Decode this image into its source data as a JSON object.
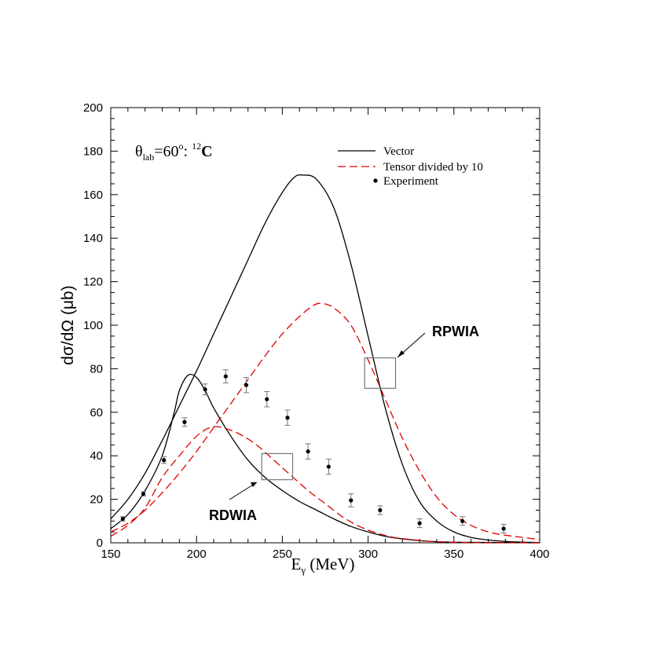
{
  "chart_data": {
    "type": "line",
    "xlabel": "E",
    "xlabel_sub": "γ",
    "xlabel_unit": " (MeV)",
    "ylabel": "dσ/dΩ (μb)",
    "xlim": [
      150,
      400
    ],
    "ylim": [
      0,
      200
    ],
    "xticks": [
      "150",
      "200",
      "250",
      "300",
      "350",
      "400"
    ],
    "yticks": [
      "0",
      "20",
      "40",
      "60",
      "80",
      "100",
      "120",
      "140",
      "160",
      "180",
      "200"
    ],
    "title": {
      "theta": "θ",
      "sub": "lab",
      "eq": "=60",
      "sup": "o",
      "mid": ": ",
      "iso_sup": "12",
      "iso": "C"
    },
    "legend": {
      "vector": "Vector",
      "tensor": "Tensor divided by 10",
      "experiment": "Experiment"
    },
    "annotations": {
      "rpwia": "RPWIA",
      "rdwia": "RDWIA"
    },
    "colors": {
      "vector": "#000000",
      "tensor": "#e00000",
      "experiment": "#000000",
      "box": "#777777"
    },
    "series": [
      {
        "name": "Vector",
        "model": "RPWIA",
        "style": "solid",
        "points": [
          [
            150,
            11
          ],
          [
            160,
            20
          ],
          [
            170,
            32
          ],
          [
            180,
            47
          ],
          [
            190,
            63
          ],
          [
            200,
            79
          ],
          [
            210,
            96
          ],
          [
            220,
            113
          ],
          [
            230,
            130
          ],
          [
            240,
            147
          ],
          [
            250,
            161
          ],
          [
            257,
            168
          ],
          [
            262,
            169
          ],
          [
            270,
            167
          ],
          [
            280,
            154
          ],
          [
            290,
            128
          ],
          [
            300,
            95
          ],
          [
            310,
            62
          ],
          [
            320,
            36
          ],
          [
            330,
            19
          ],
          [
            340,
            10
          ],
          [
            350,
            5
          ],
          [
            360,
            2.5
          ],
          [
            370,
            1.3
          ],
          [
            380,
            0.6
          ],
          [
            390,
            0.3
          ],
          [
            400,
            0.1
          ]
        ]
      },
      {
        "name": "Vector",
        "model": "RDWIA",
        "style": "solid",
        "points": [
          [
            150,
            6.5
          ],
          [
            160,
            13
          ],
          [
            170,
            24
          ],
          [
            180,
            40
          ],
          [
            187,
            60
          ],
          [
            190,
            70
          ],
          [
            195,
            77
          ],
          [
            200,
            76
          ],
          [
            205,
            70
          ],
          [
            210,
            62
          ],
          [
            220,
            49
          ],
          [
            230,
            38
          ],
          [
            240,
            30
          ],
          [
            250,
            24
          ],
          [
            260,
            19
          ],
          [
            270,
            15
          ],
          [
            280,
            11
          ],
          [
            290,
            7.5
          ],
          [
            300,
            5
          ],
          [
            310,
            3
          ],
          [
            320,
            1.8
          ],
          [
            330,
            1
          ],
          [
            340,
            0.5
          ],
          [
            360,
            0.2
          ],
          [
            380,
            0.1
          ],
          [
            400,
            0
          ]
        ]
      },
      {
        "name": "Tensor divided by 10",
        "model": "RPWIA",
        "style": "dashed",
        "points": [
          [
            150,
            5
          ],
          [
            160,
            9
          ],
          [
            170,
            15
          ],
          [
            180,
            23
          ],
          [
            190,
            32
          ],
          [
            200,
            42
          ],
          [
            210,
            53
          ],
          [
            220,
            64
          ],
          [
            230,
            75
          ],
          [
            240,
            86
          ],
          [
            250,
            96
          ],
          [
            260,
            104
          ],
          [
            268,
            109
          ],
          [
            273,
            110
          ],
          [
            280,
            108
          ],
          [
            290,
            100
          ],
          [
            300,
            84
          ],
          [
            310,
            66
          ],
          [
            320,
            48
          ],
          [
            330,
            33
          ],
          [
            340,
            21
          ],
          [
            350,
            13
          ],
          [
            360,
            8
          ],
          [
            370,
            5
          ],
          [
            380,
            3.5
          ],
          [
            390,
            2.5
          ],
          [
            400,
            1.5
          ]
        ]
      },
      {
        "name": "Tensor divided by 10",
        "model": "RDWIA",
        "style": "dashed",
        "points": [
          [
            150,
            3
          ],
          [
            160,
            8
          ],
          [
            170,
            16
          ],
          [
            180,
            30
          ],
          [
            190,
            40
          ],
          [
            200,
            49
          ],
          [
            208,
            53
          ],
          [
            215,
            53
          ],
          [
            225,
            50
          ],
          [
            235,
            45
          ],
          [
            245,
            38
          ],
          [
            255,
            31
          ],
          [
            265,
            24
          ],
          [
            275,
            18
          ],
          [
            285,
            12
          ],
          [
            295,
            7.5
          ],
          [
            305,
            4.5
          ],
          [
            315,
            2.5
          ],
          [
            325,
            1.5
          ],
          [
            340,
            0.5
          ],
          [
            360,
            0.1
          ],
          [
            380,
            0
          ],
          [
            400,
            0
          ]
        ]
      },
      {
        "name": "Experiment",
        "style": "points",
        "points": [
          {
            "x": 157,
            "y": 11,
            "err": 1
          },
          {
            "x": 169,
            "y": 22.5,
            "err": 1
          },
          {
            "x": 181,
            "y": 38,
            "err": 1.5
          },
          {
            "x": 193,
            "y": 55.5,
            "err": 2
          },
          {
            "x": 205,
            "y": 70.5,
            "err": 2.5
          },
          {
            "x": 217,
            "y": 76.5,
            "err": 3
          },
          {
            "x": 229,
            "y": 72.5,
            "err": 3.5
          },
          {
            "x": 241,
            "y": 66,
            "err": 3.5
          },
          {
            "x": 253,
            "y": 57.5,
            "err": 3.5
          },
          {
            "x": 265,
            "y": 42,
            "err": 3.5
          },
          {
            "x": 277,
            "y": 35,
            "err": 3.5
          },
          {
            "x": 290,
            "y": 19.5,
            "err": 3
          },
          {
            "x": 307,
            "y": 15,
            "err": 2
          },
          {
            "x": 330,
            "y": 9,
            "err": 2
          },
          {
            "x": 355,
            "y": 10,
            "err": 2
          },
          {
            "x": 379,
            "y": 6.5,
            "err": 2
          }
        ]
      }
    ],
    "boxes": [
      {
        "name": "rpwia-box",
        "x": [
          298,
          316
        ],
        "y": [
          71,
          85
        ]
      },
      {
        "name": "rdwia-box",
        "x": [
          238,
          256
        ],
        "y": [
          29,
          41
        ]
      }
    ]
  }
}
